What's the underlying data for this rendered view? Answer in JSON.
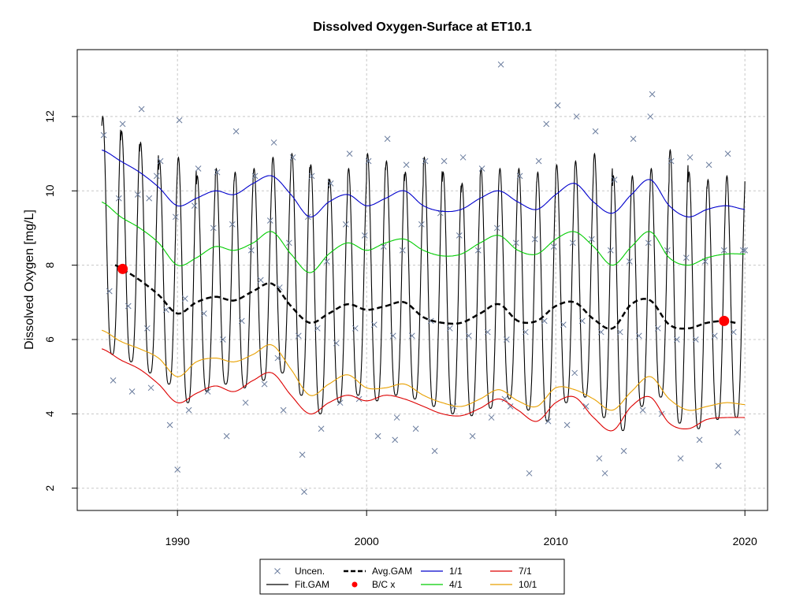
{
  "chart_data": {
    "type": "line",
    "title": "Dissolved Oxygen-Surface at ET10.1",
    "xlabel": "",
    "ylabel": "Dissolved Oxygen [mg/L]",
    "xlim": [
      1984.7,
      2021.2
    ],
    "ylim": [
      1.4,
      13.8
    ],
    "x_ticks": [
      1990,
      2000,
      2010,
      2020
    ],
    "y_ticks": [
      2,
      4,
      6,
      8,
      10,
      12
    ],
    "grid": true,
    "legend_position": "bottom",
    "legend": [
      {
        "label": "Uncen.",
        "kind": "marker-x",
        "color": "#6b7d9e"
      },
      {
        "label": "Fit.GAM",
        "kind": "line",
        "color": "#000000"
      },
      {
        "label": "Avg.GAM",
        "kind": "dash",
        "color": "#000000"
      },
      {
        "label": "B/C x",
        "kind": "marker-dot",
        "color": "#ff0000"
      },
      {
        "label": "1/1",
        "kind": "line",
        "color": "#0000cc"
      },
      {
        "label": "4/1",
        "kind": "line",
        "color": "#00cc00"
      },
      {
        "label": "7/1",
        "kind": "line",
        "color": "#dd0000"
      },
      {
        "label": "10/1",
        "kind": "line",
        "color": "#e8a000"
      }
    ],
    "series": [
      {
        "name": "1/1",
        "color": "#0000cc",
        "x": [
          1986.0,
          1987.0,
          1988.0,
          1989.0,
          1990.0,
          1991.0,
          1992.0,
          1993.0,
          1994.0,
          1995.0,
          1996.0,
          1997.0,
          1998.0,
          1999.0,
          2000.0,
          2001.0,
          2002.0,
          2003.0,
          2004.0,
          2005.0,
          2006.0,
          2007.0,
          2008.0,
          2009.0,
          2010.0,
          2011.0,
          2012.0,
          2013.0,
          2014.0,
          2015.0,
          2016.0,
          2017.0,
          2018.0,
          2019.0,
          2020.0
        ],
        "y": [
          11.1,
          10.8,
          10.5,
          10.1,
          9.6,
          9.8,
          10.0,
          9.9,
          10.2,
          10.4,
          9.9,
          9.3,
          9.7,
          9.9,
          9.6,
          9.8,
          10.0,
          9.6,
          9.45,
          9.5,
          9.8,
          10.0,
          9.7,
          9.5,
          9.9,
          10.2,
          9.7,
          9.4,
          9.9,
          10.3,
          9.6,
          9.3,
          9.5,
          9.6,
          9.5
        ]
      },
      {
        "name": "4/1",
        "color": "#00cc00",
        "x": [
          1986.0,
          1987.0,
          1988.0,
          1989.0,
          1990.0,
          1991.0,
          1992.0,
          1993.0,
          1994.0,
          1995.0,
          1996.0,
          1997.0,
          1998.0,
          1999.0,
          2000.0,
          2001.0,
          2002.0,
          2003.0,
          2004.0,
          2005.0,
          2006.0,
          2007.0,
          2008.0,
          2009.0,
          2010.0,
          2011.0,
          2012.0,
          2013.0,
          2014.0,
          2015.0,
          2016.0,
          2017.0,
          2018.0,
          2019.0,
          2020.0
        ],
        "y": [
          9.7,
          9.3,
          9.0,
          8.6,
          8.0,
          8.2,
          8.5,
          8.4,
          8.6,
          8.9,
          8.3,
          7.8,
          8.3,
          8.6,
          8.4,
          8.6,
          8.7,
          8.4,
          8.25,
          8.3,
          8.6,
          8.8,
          8.4,
          8.3,
          8.7,
          8.9,
          8.5,
          8.0,
          8.5,
          8.9,
          8.2,
          8.0,
          8.2,
          8.3,
          8.3
        ]
      },
      {
        "name": "10/1",
        "color": "#e8a000",
        "x": [
          1986.0,
          1987.0,
          1988.0,
          1989.0,
          1990.0,
          1991.0,
          1992.0,
          1993.0,
          1994.0,
          1995.0,
          1996.0,
          1997.0,
          1998.0,
          1999.0,
          2000.0,
          2001.0,
          2002.0,
          2003.0,
          2004.0,
          2005.0,
          2006.0,
          2007.0,
          2008.0,
          2009.0,
          2010.0,
          2011.0,
          2012.0,
          2013.0,
          2014.0,
          2015.0,
          2016.0,
          2017.0,
          2018.0,
          2019.0,
          2020.0
        ],
        "y": [
          6.25,
          5.95,
          5.75,
          5.5,
          5.0,
          5.4,
          5.5,
          5.4,
          5.6,
          5.85,
          5.2,
          4.5,
          4.8,
          5.05,
          4.7,
          4.7,
          4.8,
          4.5,
          4.3,
          4.2,
          4.4,
          4.65,
          4.35,
          4.2,
          4.7,
          4.65,
          4.4,
          4.1,
          4.6,
          5.0,
          4.4,
          4.1,
          4.2,
          4.3,
          4.25
        ]
      },
      {
        "name": "7/1",
        "color": "#dd0000",
        "x": [
          1986.0,
          1987.0,
          1988.0,
          1989.0,
          1990.0,
          1991.0,
          1992.0,
          1993.0,
          1994.0,
          1995.0,
          1996.0,
          1997.0,
          1998.0,
          1999.0,
          2000.0,
          2001.0,
          2002.0,
          2003.0,
          2004.0,
          2005.0,
          2006.0,
          2007.0,
          2008.0,
          2009.0,
          2010.0,
          2011.0,
          2012.0,
          2013.0,
          2014.0,
          2015.0,
          2016.0,
          2017.0,
          2018.0,
          2019.0,
          2020.0
        ],
        "y": [
          5.75,
          5.45,
          5.2,
          4.8,
          4.3,
          4.55,
          4.75,
          4.6,
          4.9,
          5.1,
          4.5,
          4.0,
          4.3,
          4.5,
          4.35,
          4.5,
          4.4,
          4.2,
          4.0,
          3.95,
          4.15,
          4.4,
          4.1,
          3.8,
          4.3,
          4.45,
          3.9,
          3.55,
          4.2,
          4.45,
          3.75,
          3.6,
          3.85,
          3.9,
          3.9
        ]
      },
      {
        "name": "Avg.GAM",
        "color": "#000000",
        "x": [
          1986.7,
          1987.0,
          1988.0,
          1989.0,
          1990.0,
          1991.0,
          1992.0,
          1993.0,
          1994.0,
          1995.0,
          1996.0,
          1997.0,
          1998.0,
          1999.0,
          2000.0,
          2001.0,
          2002.0,
          2003.0,
          2004.0,
          2005.0,
          2006.0,
          2007.0,
          2008.0,
          2009.0,
          2010.0,
          2011.0,
          2012.0,
          2013.0,
          2014.0,
          2015.0,
          2016.0,
          2017.0,
          2018.0,
          2019.0,
          2019.5
        ],
        "y": [
          8.0,
          7.9,
          7.6,
          7.2,
          6.7,
          7.0,
          7.15,
          7.05,
          7.3,
          7.5,
          6.9,
          6.45,
          6.7,
          6.95,
          6.8,
          6.9,
          7.0,
          6.6,
          6.45,
          6.45,
          6.7,
          6.95,
          6.5,
          6.5,
          6.9,
          7.0,
          6.55,
          6.3,
          6.95,
          7.05,
          6.4,
          6.3,
          6.45,
          6.5,
          6.45
        ]
      }
    ],
    "fit_gam": {
      "name": "Fit.GAM",
      "color": "#000000",
      "x_start": 1986.0,
      "x_end": 2020.0,
      "peak_phase": 0.05,
      "peaks": [
        12.0,
        11.6,
        11.3,
        10.8,
        10.9,
        10.4,
        10.6,
        10.5,
        10.6,
        10.9,
        11.0,
        10.7,
        10.3,
        10.6,
        11.0,
        10.8,
        10.5,
        10.9,
        10.5,
        10.2,
        10.6,
        10.6,
        10.6,
        10.5,
        10.7,
        10.8,
        11.0,
        10.4,
        10.4,
        10.6,
        11.1,
        10.5,
        10.3,
        10.4,
        10.5
      ],
      "troughs": [
        5.6,
        5.4,
        5.1,
        4.8,
        4.3,
        4.6,
        4.8,
        4.7,
        4.9,
        5.1,
        4.5,
        4.0,
        4.3,
        4.5,
        4.35,
        4.5,
        4.4,
        4.2,
        4.0,
        3.95,
        4.15,
        4.4,
        4.1,
        3.8,
        4.3,
        4.45,
        3.9,
        3.55,
        4.2,
        4.45,
        3.75,
        3.6,
        3.85,
        3.9,
        4.3
      ]
    },
    "bc_points": {
      "name": "B/C x",
      "color": "#ff0000",
      "x": [
        1987.1,
        2018.9
      ],
      "y": [
        7.9,
        6.5
      ]
    },
    "uncen_points": {
      "name": "Uncen.",
      "color": "#6b7d9e",
      "x": [
        1986.1,
        1986.4,
        1986.6,
        1986.9,
        1987.1,
        1987.4,
        1987.6,
        1987.9,
        1988.1,
        1988.4,
        1988.6,
        1988.9,
        1989.1,
        1989.4,
        1989.6,
        1989.9,
        1990.1,
        1990.4,
        1990.6,
        1990.9,
        1991.1,
        1991.4,
        1991.6,
        1991.9,
        1992.1,
        1992.4,
        1992.6,
        1992.9,
        1993.1,
        1993.4,
        1993.6,
        1993.9,
        1994.1,
        1994.4,
        1994.6,
        1994.9,
        1995.1,
        1995.4,
        1995.6,
        1995.9,
        1996.1,
        1996.4,
        1996.6,
        1996.9,
        1997.1,
        1997.4,
        1997.6,
        1997.9,
        1998.1,
        1998.4,
        1998.6,
        1998.9,
        1999.1,
        1999.4,
        1999.6,
        1999.9,
        2000.1,
        2000.4,
        2000.6,
        2000.9,
        2001.1,
        2001.4,
        2001.6,
        2001.9,
        2002.1,
        2002.4,
        2002.6,
        2002.9,
        2003.1,
        2003.4,
        2003.6,
        2003.9,
        2004.1,
        2004.4,
        2004.6,
        2004.9,
        2005.1,
        2005.4,
        2005.6,
        2005.9,
        2006.1,
        2006.4,
        2006.6,
        2006.9,
        2007.1,
        2007.4,
        2007.6,
        2007.9,
        2008.1,
        2008.4,
        2008.6,
        2008.9,
        2009.1,
        2009.4,
        2009.6,
        2009.9,
        2010.1,
        2010.4,
        2010.6,
        2010.9,
        2011.1,
        2011.4,
        2011.6,
        2011.9,
        2012.1,
        2012.4,
        2012.6,
        2012.9,
        2013.1,
        2013.4,
        2013.6,
        2013.9,
        2014.1,
        2014.4,
        2014.6,
        2014.9,
        2015.1,
        2015.4,
        2015.6,
        2015.9,
        2016.1,
        2016.4,
        2016.6,
        2016.9,
        2017.1,
        2017.4,
        2017.6,
        2017.9,
        2018.1,
        2018.4,
        2018.6,
        2018.9,
        2019.1,
        2019.4,
        2019.6,
        2019.9,
        2020.0,
        1990.0,
        1996.7,
        2007.3,
        2015.0,
        2012.3,
        1995.3,
        1988.5,
        2001.5,
        2011.0,
        2009.5
      ],
      "y": [
        11.5,
        7.3,
        4.9,
        9.8,
        11.8,
        6.9,
        4.6,
        9.9,
        12.2,
        6.3,
        4.7,
        10.4,
        10.8,
        6.8,
        3.7,
        9.3,
        11.9,
        7.1,
        4.1,
        9.6,
        10.6,
        6.7,
        4.6,
        9.0,
        10.5,
        6.0,
        3.4,
        9.1,
        11.6,
        6.5,
        4.3,
        8.4,
        10.4,
        7.6,
        4.8,
        9.2,
        11.3,
        7.4,
        4.1,
        8.6,
        10.9,
        6.1,
        2.9,
        9.3,
        10.4,
        6.3,
        3.6,
        8.1,
        10.2,
        5.9,
        4.3,
        9.1,
        11.0,
        6.3,
        4.4,
        8.8,
        10.8,
        6.4,
        3.4,
        8.5,
        11.4,
        6.1,
        3.9,
        8.4,
        10.7,
        6.1,
        3.6,
        9.1,
        10.8,
        6.5,
        3.0,
        9.4,
        10.8,
        6.3,
        4.2,
        8.8,
        10.9,
        6.1,
        3.4,
        8.4,
        10.6,
        6.2,
        3.9,
        9.0,
        13.4,
        6.0,
        4.2,
        8.6,
        10.4,
        6.2,
        2.4,
        8.7,
        10.8,
        6.5,
        3.8,
        8.5,
        12.3,
        6.4,
        3.7,
        8.6,
        12.0,
        6.5,
        4.2,
        8.7,
        11.6,
        6.2,
        2.4,
        8.4,
        10.3,
        6.2,
        3.0,
        8.1,
        11.4,
        6.1,
        4.1,
        8.6,
        12.6,
        6.3,
        4.0,
        8.4,
        10.8,
        6.0,
        2.8,
        8.2,
        10.9,
        6.0,
        3.3,
        8.1,
        10.7,
        6.1,
        2.6,
        8.4,
        11.0,
        6.2,
        3.5,
        8.4,
        8.4,
        2.5,
        1.9,
        4.4,
        12.0,
        2.8,
        5.5,
        9.8,
        3.3,
        5.1,
        11.8
      ]
    }
  }
}
